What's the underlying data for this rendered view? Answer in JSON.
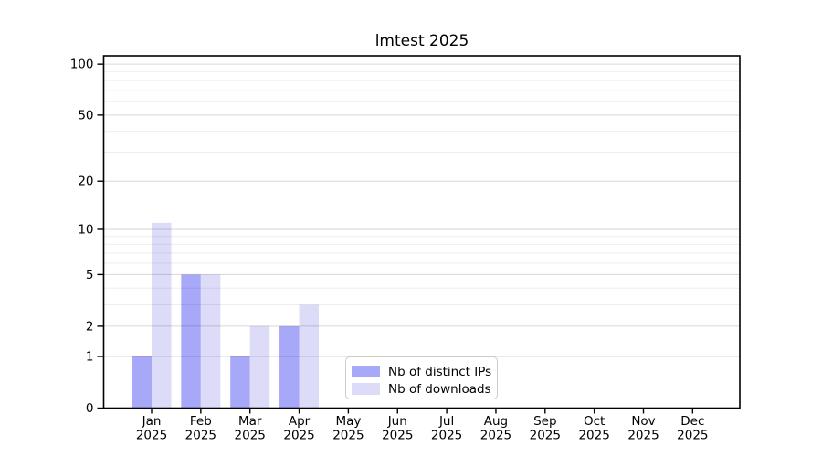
{
  "figure": {
    "title": "lmtest 2025"
  },
  "chart_data": {
    "type": "bar",
    "title": "lmtest 2025",
    "categories": [
      "Jan",
      "Feb",
      "Mar",
      "Apr",
      "May",
      "Jun",
      "Jul",
      "Aug",
      "Sep",
      "Oct",
      "Nov",
      "Dec"
    ],
    "year": "2025",
    "series": [
      {
        "key": "distinct-ips",
        "name": "Nb of distinct IPs",
        "color": "#a8a8f8",
        "values": [
          1,
          5,
          1,
          2,
          0,
          0,
          0,
          0,
          0,
          0,
          0,
          0
        ]
      },
      {
        "key": "downloads",
        "name": "Nb of downloads",
        "color": "#dcdcf9",
        "values": [
          11,
          5,
          2,
          3,
          0,
          0,
          0,
          0,
          0,
          0,
          0,
          0
        ]
      }
    ],
    "y_axis": {
      "scale": "log1p",
      "major_ticks": [
        0,
        1,
        2,
        5,
        10,
        20,
        50,
        100
      ],
      "minor_ticks": [
        3,
        4,
        6,
        7,
        8,
        9,
        30,
        40,
        60,
        70,
        80,
        90
      ],
      "range_max": 112
    },
    "x_axis": {
      "tick_label_line2": "2025"
    },
    "legend": {
      "position": "lower center",
      "items": [
        "Nb of distinct IPs",
        "Nb of downloads"
      ]
    },
    "grid": true,
    "colors": {
      "major_grid": "rgba(0,0,0,0.16)",
      "minor_grid": "rgba(0,0,0,0.07)",
      "axis": "#000000",
      "background": "#ffffff"
    }
  }
}
